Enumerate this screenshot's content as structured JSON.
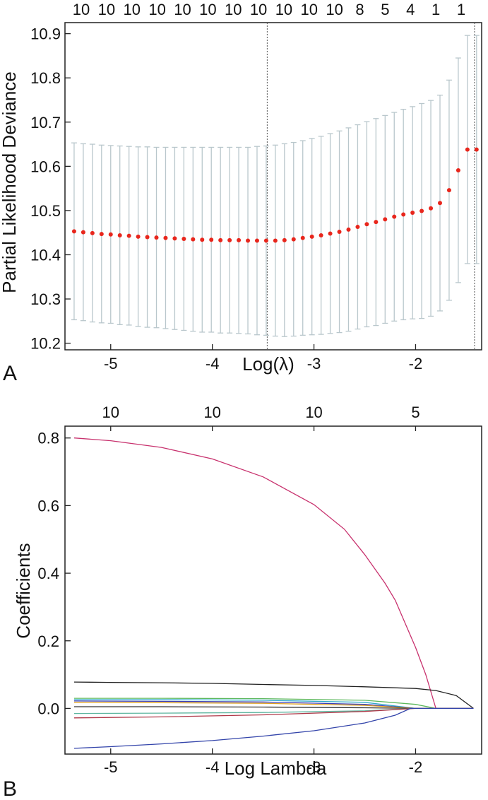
{
  "panel_labels": [
    "A",
    "B"
  ],
  "chart_data": [
    {
      "type": "scatter",
      "panel": "A",
      "xlabel": "Log(λ)",
      "ylabel": "Partial Likelihood Deviance",
      "xlim": [
        -5.45,
        -1.35
      ],
      "ylim": [
        10.185,
        10.925
      ],
      "xticks": [
        -5,
        -4,
        -3,
        -2
      ],
      "xtick_labels": [
        "-5",
        "-4",
        "-3",
        "-2"
      ],
      "yticks": [
        10.2,
        10.3,
        10.4,
        10.5,
        10.6,
        10.7,
        10.8,
        10.9
      ],
      "ytick_labels": [
        "10.2",
        "10.3",
        "10.4",
        "10.5",
        "10.6",
        "10.7",
        "10.8",
        "10.9"
      ],
      "top_axis_labels": [
        "10",
        "10",
        "10",
        "10",
        "10",
        "10",
        "10",
        "10",
        "10",
        "10",
        "10",
        "8",
        "5",
        "4",
        "1",
        "1"
      ],
      "vlines": [
        -3.46,
        -1.42
      ],
      "points": {
        "x": [
          -5.36,
          -5.27,
          -5.18,
          -5.09,
          -5.0,
          -4.91,
          -4.82,
          -4.73,
          -4.64,
          -4.55,
          -4.46,
          -4.37,
          -4.28,
          -4.19,
          -4.1,
          -4.01,
          -3.92,
          -3.83,
          -3.74,
          -3.65,
          -3.56,
          -3.47,
          -3.38,
          -3.29,
          -3.2,
          -3.11,
          -3.02,
          -2.93,
          -2.84,
          -2.75,
          -2.66,
          -2.57,
          -2.48,
          -2.39,
          -2.3,
          -2.21,
          -2.12,
          -2.03,
          -1.94,
          -1.85,
          -1.76,
          -1.67,
          -1.58,
          -1.49,
          -1.4
        ],
        "y": [
          10.453,
          10.451,
          10.449,
          10.447,
          10.446,
          10.444,
          10.443,
          10.441,
          10.44,
          10.439,
          10.438,
          10.437,
          10.436,
          10.435,
          10.434,
          10.434,
          10.433,
          10.433,
          10.433,
          10.432,
          10.432,
          10.432,
          10.432,
          10.433,
          10.435,
          10.438,
          10.441,
          10.444,
          10.448,
          10.452,
          10.457,
          10.463,
          10.469,
          10.474,
          10.48,
          10.486,
          10.491,
          10.495,
          10.499,
          10.505,
          10.517,
          10.546,
          10.591,
          10.638,
          10.638
        ],
        "upper": [
          10.653,
          10.651,
          10.65,
          10.648,
          10.647,
          10.646,
          10.645,
          10.644,
          10.644,
          10.643,
          10.643,
          10.643,
          10.643,
          10.643,
          10.643,
          10.643,
          10.643,
          10.643,
          10.643,
          10.643,
          10.645,
          10.646,
          10.648,
          10.651,
          10.654,
          10.658,
          10.663,
          10.668,
          10.674,
          10.68,
          10.687,
          10.694,
          10.701,
          10.708,
          10.715,
          10.722,
          10.729,
          10.735,
          10.742,
          10.749,
          10.761,
          10.795,
          10.845,
          10.896,
          10.896
        ],
        "lower": [
          10.253,
          10.251,
          10.248,
          10.246,
          10.245,
          10.242,
          10.241,
          10.238,
          10.236,
          10.235,
          10.233,
          10.231,
          10.229,
          10.227,
          10.225,
          10.225,
          10.223,
          10.223,
          10.222,
          10.221,
          10.219,
          10.218,
          10.216,
          10.215,
          10.216,
          10.218,
          10.219,
          10.22,
          10.222,
          10.224,
          10.227,
          10.232,
          10.237,
          10.24,
          10.245,
          10.25,
          10.253,
          10.255,
          10.256,
          10.261,
          10.273,
          10.297,
          10.337,
          10.38,
          10.38
        ]
      },
      "colors": {
        "points": "#e8261c",
        "errorbars": "#b9c7cc",
        "vlines": "#555555"
      }
    },
    {
      "type": "line",
      "panel": "B",
      "xlabel": "Log Lambda",
      "ylabel": "Coefficients",
      "xlim": [
        -5.45,
        -1.35
      ],
      "ylim": [
        -0.135,
        0.835
      ],
      "xticks": [
        -5,
        -4,
        -3,
        -2
      ],
      "xtick_labels": [
        "-5",
        "-4",
        "-3",
        "-2"
      ],
      "yticks": [
        0.0,
        0.2,
        0.4,
        0.6,
        0.8
      ],
      "ytick_labels": [
        "0.0",
        "0.2",
        "0.4",
        "0.6",
        "0.8"
      ],
      "top_axis_labels": [
        "10",
        "10",
        "10",
        "5"
      ],
      "top_axis_positions": [
        -5,
        -4,
        -3,
        -2
      ],
      "series": [
        {
          "color": "#c8326e",
          "x": [
            -5.36,
            -5.0,
            -4.5,
            -4.0,
            -3.5,
            -3.0,
            -2.7,
            -2.5,
            -2.3,
            -2.2,
            -2.0,
            -1.9,
            -1.8,
            -1.43
          ],
          "values": [
            0.8,
            0.792,
            0.772,
            0.738,
            0.685,
            0.603,
            0.53,
            0.455,
            0.37,
            0.32,
            0.18,
            0.1,
            0.0,
            0.0
          ]
        },
        {
          "color": "#222222",
          "x": [
            -5.36,
            -5.0,
            -4.5,
            -4.0,
            -3.5,
            -3.0,
            -2.5,
            -2.0,
            -1.8,
            -1.6,
            -1.43
          ],
          "values": [
            0.078,
            0.077,
            0.076,
            0.074,
            0.071,
            0.068,
            0.064,
            0.059,
            0.053,
            0.038,
            0.0
          ]
        },
        {
          "color": "#5cb85c",
          "x": [
            -5.36,
            -4.5,
            -3.5,
            -2.5,
            -2.0,
            -1.8,
            -1.43
          ],
          "values": [
            0.03,
            0.03,
            0.029,
            0.024,
            0.012,
            0.0,
            0.0
          ]
        },
        {
          "color": "#2fa9c9",
          "x": [
            -5.36,
            -4.5,
            -3.5,
            -2.5,
            -2.0,
            -1.43
          ],
          "values": [
            0.026,
            0.026,
            0.024,
            0.018,
            0.0,
            0.0
          ]
        },
        {
          "color": "#3b3bb5",
          "x": [
            -5.36,
            -4.5,
            -3.5,
            -2.5,
            -2.0,
            -1.43
          ],
          "values": [
            0.022,
            0.021,
            0.019,
            0.012,
            0.0,
            0.0
          ]
        },
        {
          "color": "#e0a21f",
          "x": [
            -5.36,
            -4.5,
            -3.5,
            -2.5,
            -2.0,
            -1.43
          ],
          "values": [
            0.018,
            0.017,
            0.015,
            0.009,
            0.0,
            0.0
          ]
        },
        {
          "color": "#333333",
          "x": [
            -5.36,
            -4.5,
            -3.5,
            -2.5,
            -2.0,
            -1.43
          ],
          "values": [
            0.005,
            0.005,
            0.004,
            0.002,
            0.0,
            0.0
          ]
        },
        {
          "color": "#5fb6a0",
          "x": [
            -5.36,
            -4.5,
            -3.5,
            -2.5,
            -2.0,
            -1.43
          ],
          "values": [
            -0.015,
            -0.014,
            -0.012,
            -0.007,
            0.0,
            0.0
          ]
        },
        {
          "color": "#b03a4a",
          "x": [
            -5.36,
            -4.5,
            -3.5,
            -2.5,
            -2.0,
            -1.43
          ],
          "values": [
            -0.028,
            -0.025,
            -0.019,
            -0.009,
            0.0,
            0.0
          ]
        },
        {
          "color": "#3344aa",
          "x": [
            -5.36,
            -5.0,
            -4.5,
            -4.0,
            -3.5,
            -3.0,
            -2.5,
            -2.2,
            -2.05,
            -1.43
          ],
          "values": [
            -0.118,
            -0.113,
            -0.105,
            -0.095,
            -0.082,
            -0.066,
            -0.043,
            -0.02,
            0.0,
            0.0
          ]
        }
      ]
    }
  ]
}
